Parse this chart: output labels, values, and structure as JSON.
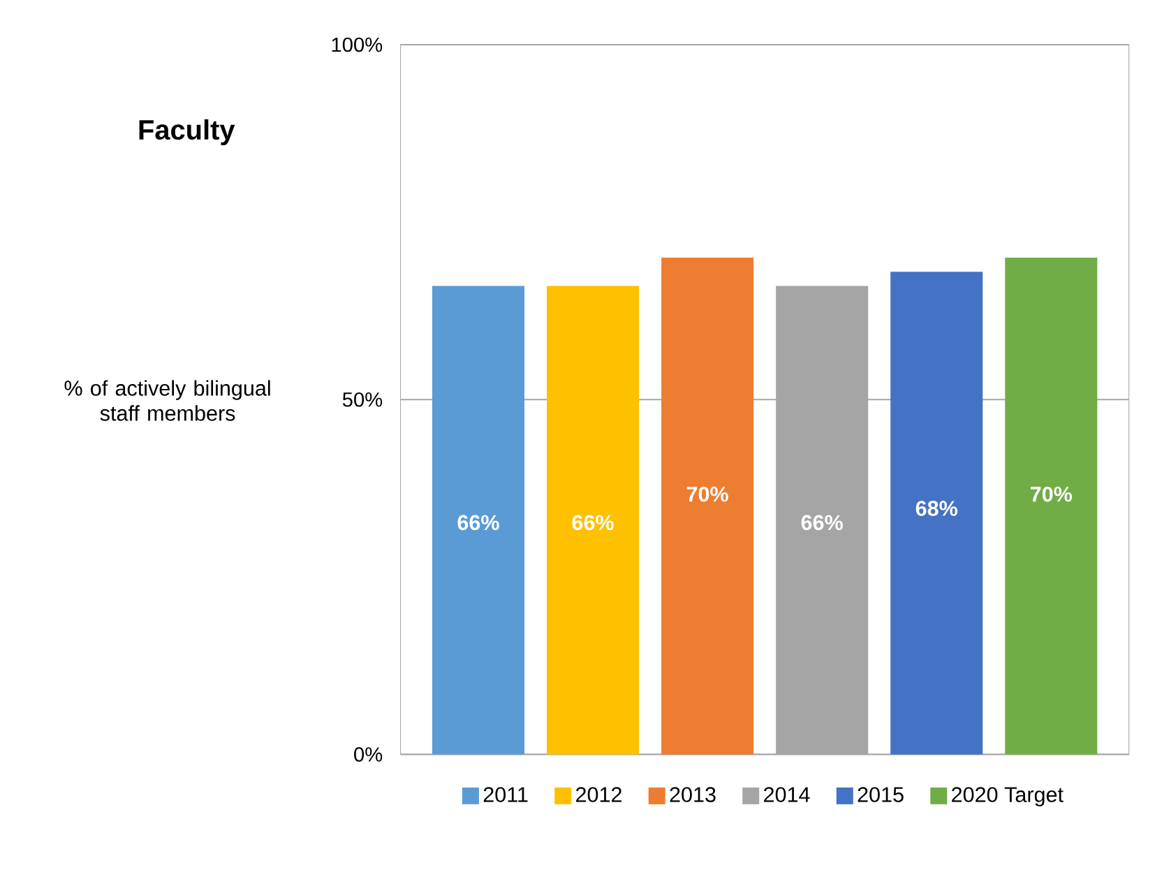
{
  "chart_data": {
    "type": "bar",
    "title": "Faculty",
    "ylabel": "% of actively bilingual staff members",
    "categories": [
      null
    ],
    "series": [
      {
        "name": "2011",
        "color": "#5b9bd5",
        "values": [
          66
        ],
        "value_labels": [
          "66%"
        ]
      },
      {
        "name": "2012",
        "color": "#ffc000",
        "values": [
          66
        ],
        "value_labels": [
          "66%"
        ]
      },
      {
        "name": "2013",
        "color": "#ed7d31",
        "values": [
          70
        ],
        "value_labels": [
          "70%"
        ]
      },
      {
        "name": "2014",
        "color": "#a5a5a5",
        "values": [
          66
        ],
        "value_labels": [
          "66%"
        ]
      },
      {
        "name": "2015",
        "color": "#4472c4",
        "values": [
          68
        ],
        "value_labels": [
          "68%"
        ]
      },
      {
        "name": "2020 Target",
        "color": "#70ad47",
        "values": [
          70
        ],
        "value_labels": [
          "70%"
        ]
      }
    ],
    "ylim": [
      0,
      100
    ],
    "yticks": [
      {
        "value": 0,
        "label": "0%"
      },
      {
        "value": 50,
        "label": "50%"
      },
      {
        "value": 100,
        "label": "100%"
      }
    ],
    "grid": "y",
    "legend": "bottom"
  }
}
